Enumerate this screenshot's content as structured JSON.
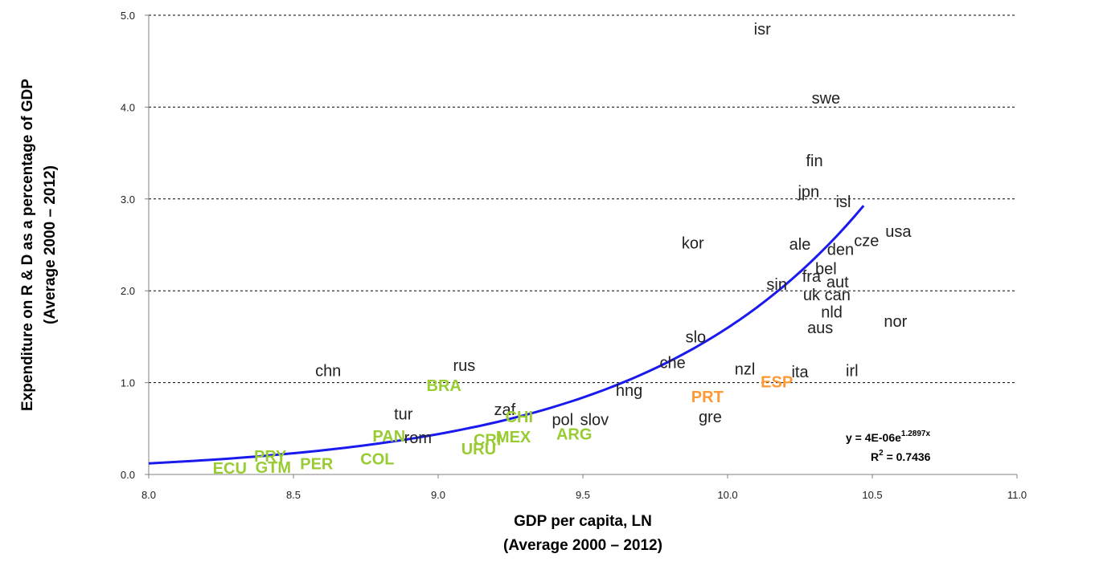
{
  "chart_data": {
    "type": "scatter",
    "xlabel": [
      "GDP per capita, LN",
      "(Average 2000 – 2012)"
    ],
    "ylabel": [
      "Expenditure on R & D as a percentage of GDP",
      "(Average 2000 – 2012)"
    ],
    "xlim": [
      8.0,
      11.0
    ],
    "ylim": [
      0.0,
      5.0
    ],
    "xticks": [
      8.0,
      8.5,
      9.0,
      9.5,
      10.0,
      10.5,
      11.0
    ],
    "xtick_labels": [
      "8.0",
      "8.5",
      "9.0",
      "9.5",
      "10.0",
      "10.5",
      "11.0"
    ],
    "yticks": [
      0.0,
      1.0,
      2.0,
      3.0,
      4.0,
      5.0
    ],
    "ytick_labels": [
      "0.0",
      "1.0",
      "2.0",
      "3.0",
      "4.0",
      "5.0"
    ],
    "grid": "horizontal dashed",
    "colors": {
      "oecd": "#222222",
      "latin_america": "#99cc33",
      "iberia": "#ff9933",
      "trend": "#1a1aee"
    },
    "points": [
      {
        "label": "isr",
        "x": 10.12,
        "y": 4.85,
        "group": "oecd"
      },
      {
        "label": "swe",
        "x": 10.34,
        "y": 4.1,
        "group": "oecd"
      },
      {
        "label": "fin",
        "x": 10.3,
        "y": 3.42,
        "group": "oecd"
      },
      {
        "label": "jpn",
        "x": 10.28,
        "y": 3.08,
        "group": "oecd"
      },
      {
        "label": "isl",
        "x": 10.4,
        "y": 2.97,
        "group": "oecd"
      },
      {
        "label": "usa",
        "x": 10.59,
        "y": 2.65,
        "group": "oecd"
      },
      {
        "label": "cze",
        "x": 10.48,
        "y": 2.55,
        "group": "oecd"
      },
      {
        "label": "kor",
        "x": 9.88,
        "y": 2.52,
        "group": "oecd"
      },
      {
        "label": "ale",
        "x": 10.25,
        "y": 2.51,
        "group": "oecd"
      },
      {
        "label": "den",
        "x": 10.39,
        "y": 2.45,
        "group": "oecd"
      },
      {
        "label": "bel",
        "x": 10.34,
        "y": 2.24,
        "group": "oecd"
      },
      {
        "label": "fra",
        "x": 10.29,
        "y": 2.16,
        "group": "oecd"
      },
      {
        "label": "aut",
        "x": 10.38,
        "y": 2.1,
        "group": "oecd"
      },
      {
        "label": "sin",
        "x": 10.17,
        "y": 2.07,
        "group": "oecd"
      },
      {
        "label": "uk",
        "x": 10.29,
        "y": 1.96,
        "group": "oecd"
      },
      {
        "label": "can",
        "x": 10.38,
        "y": 1.96,
        "group": "oecd"
      },
      {
        "label": "nld",
        "x": 10.36,
        "y": 1.77,
        "group": "oecd"
      },
      {
        "label": "nor",
        "x": 10.58,
        "y": 1.67,
        "group": "oecd"
      },
      {
        "label": "aus",
        "x": 10.32,
        "y": 1.6,
        "group": "oecd"
      },
      {
        "label": "slo",
        "x": 9.89,
        "y": 1.5,
        "group": "oecd"
      },
      {
        "label": "che",
        "x": 9.81,
        "y": 1.22,
        "group": "oecd"
      },
      {
        "label": "rus",
        "x": 9.09,
        "y": 1.19,
        "group": "oecd"
      },
      {
        "label": "chn",
        "x": 8.62,
        "y": 1.13,
        "group": "oecd"
      },
      {
        "label": "nzl",
        "x": 10.06,
        "y": 1.15,
        "group": "oecd"
      },
      {
        "label": "ita",
        "x": 10.25,
        "y": 1.12,
        "group": "oecd"
      },
      {
        "label": "irl",
        "x": 10.43,
        "y": 1.13,
        "group": "oecd"
      },
      {
        "label": "hng",
        "x": 9.66,
        "y": 0.92,
        "group": "oecd"
      },
      {
        "label": "zaf",
        "x": 9.23,
        "y": 0.71,
        "group": "oecd"
      },
      {
        "label": "tur",
        "x": 8.88,
        "y": 0.66,
        "group": "oecd"
      },
      {
        "label": "pol",
        "x": 9.43,
        "y": 0.6,
        "group": "oecd"
      },
      {
        "label": "slov",
        "x": 9.54,
        "y": 0.6,
        "group": "oecd"
      },
      {
        "label": "gre",
        "x": 9.94,
        "y": 0.63,
        "group": "oecd"
      },
      {
        "label": "rom",
        "x": 8.93,
        "y": 0.4,
        "group": "oecd"
      },
      {
        "label": "BRA",
        "x": 9.02,
        "y": 0.97,
        "group": "latin_america"
      },
      {
        "label": "CHI",
        "x": 9.28,
        "y": 0.63,
        "group": "latin_america"
      },
      {
        "label": "PAN",
        "x": 8.83,
        "y": 0.42,
        "group": "latin_america"
      },
      {
        "label": "ARG",
        "x": 9.47,
        "y": 0.44,
        "group": "latin_america"
      },
      {
        "label": "CRI",
        "x": 9.17,
        "y": 0.38,
        "group": "latin_america"
      },
      {
        "label": "MEX",
        "x": 9.26,
        "y": 0.41,
        "group": "latin_america"
      },
      {
        "label": "URU",
        "x": 9.14,
        "y": 0.28,
        "group": "latin_america"
      },
      {
        "label": "PRY",
        "x": 8.42,
        "y": 0.2,
        "group": "latin_america"
      },
      {
        "label": "COL",
        "x": 8.79,
        "y": 0.17,
        "group": "latin_america"
      },
      {
        "label": "PER",
        "x": 8.58,
        "y": 0.12,
        "group": "latin_america"
      },
      {
        "label": "ECU",
        "x": 8.28,
        "y": 0.07,
        "group": "latin_america"
      },
      {
        "label": "GTM",
        "x": 8.43,
        "y": 0.08,
        "group": "latin_america"
      },
      {
        "label": "PRT",
        "x": 9.93,
        "y": 0.85,
        "group": "iberia"
      },
      {
        "label": "ESP",
        "x": 10.17,
        "y": 1.01,
        "group": "iberia"
      }
    ],
    "trendline": {
      "type": "exponential",
      "coefficient": 4e-06,
      "exponent": 1.2897,
      "x_range": [
        8.0,
        10.47
      ],
      "equation_text": {
        "main": "y = 4E-06e",
        "sup": "1.2897x"
      },
      "r2_text": {
        "main": "R",
        "sup": "2",
        "rest": " = 0.7436"
      }
    }
  }
}
